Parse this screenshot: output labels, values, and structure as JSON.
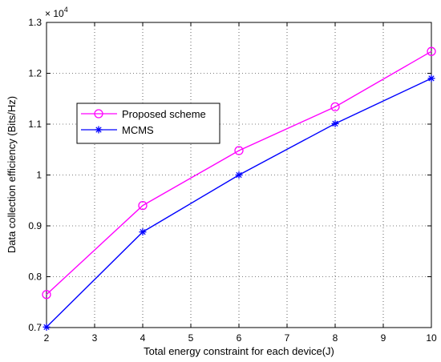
{
  "chart_data": {
    "type": "line",
    "title": "",
    "xlabel": "Total energy constraint for each device(J)",
    "ylabel": "Data collection efficiency (Bits/Hz)",
    "y_exponent_label": "× 10",
    "y_exponent_power": "4",
    "xlim": [
      2,
      10
    ],
    "ylim": [
      0.7,
      1.3
    ],
    "x_ticks": [
      2,
      3,
      4,
      5,
      6,
      7,
      8,
      9,
      10
    ],
    "x_tick_labels": [
      "2",
      "3",
      "4",
      "5",
      "6",
      "7",
      "8",
      "9",
      "10"
    ],
    "y_ticks": [
      0.7,
      0.8,
      0.9,
      1.0,
      1.1,
      1.2,
      1.3
    ],
    "y_tick_labels": [
      "0.7",
      "0.8",
      "0.9",
      "1",
      "1.1",
      "1.2",
      "1.3"
    ],
    "grid": true,
    "legend_position": "upper-left",
    "x": [
      2,
      4,
      6,
      8,
      10
    ],
    "series": [
      {
        "name": "Proposed scheme",
        "values": [
          0.765,
          0.94,
          1.048,
          1.134,
          1.243
        ],
        "color": "#ff00ff",
        "marker": "circle"
      },
      {
        "name": "MCMS",
        "values": [
          0.701,
          0.888,
          1.0,
          1.101,
          1.19
        ],
        "color": "#0000ff",
        "marker": "star"
      }
    ]
  }
}
